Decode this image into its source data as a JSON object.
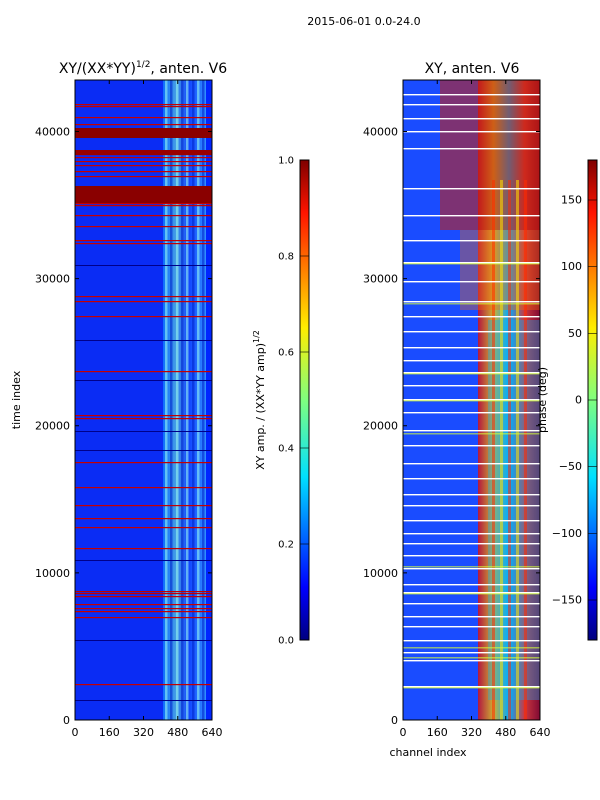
{
  "suptitle": "2015-06-01 0.0-24.0",
  "chart_data": [
    {
      "type": "heatmap",
      "title_main": "XY/(XX*YY)",
      "title_exp": "1/2",
      "title_tail": ", anten. V6",
      "xlabel": "",
      "ylabel": "time index",
      "xlim": [
        0,
        640
      ],
      "ylim": [
        0,
        43500
      ],
      "xticks": [
        "0",
        "160",
        "320",
        "480",
        "640"
      ],
      "yticks": [
        "0",
        "10000",
        "20000",
        "30000",
        "40000"
      ],
      "colorbar": {
        "label_main": "XY amp. / (XX*YY amp)",
        "label_exp": "1/2",
        "range": [
          0.0,
          1.0
        ],
        "ticks": [
          "0.0",
          "0.2",
          "0.4",
          "0.6",
          "0.8",
          "1.0"
        ]
      }
    },
    {
      "type": "heatmap",
      "title_main": "XY, anten. V6",
      "xlabel": "channel index",
      "ylabel": "",
      "xlim": [
        0,
        640
      ],
      "ylim": [
        0,
        43500
      ],
      "xticks": [
        "0",
        "160",
        "320",
        "480",
        "640"
      ],
      "yticks": [
        "0",
        "10000",
        "20000",
        "30000",
        "40000"
      ],
      "colorbar": {
        "label_main": "phase (deg)",
        "range": [
          -180,
          180
        ],
        "ticks": [
          "−150",
          "−100",
          "−50",
          "0",
          "50",
          "100",
          "150"
        ]
      }
    }
  ]
}
